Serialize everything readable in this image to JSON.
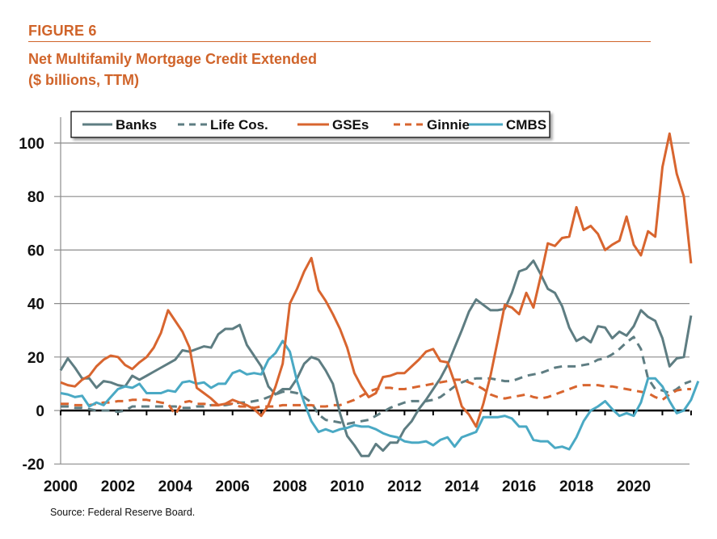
{
  "figure": {
    "label": "FIGURE 6",
    "title_line1": "Net Multifamily Mortgage Credit Extended",
    "title_line2": "($ billions, TTM)",
    "source": "Source: Federal Reserve Board."
  },
  "colors": {
    "accent": "#d0642a",
    "banks": "#5e7d82",
    "life_cos": "#5e7d82",
    "gses": "#d8652f",
    "ginnie": "#d8652f",
    "cmbs": "#4aa9c4",
    "grid": "#8c8c8c"
  },
  "chart_data": {
    "type": "line",
    "title": "Net Multifamily Mortgage Credit Extended ($ billions, TTM)",
    "xlabel": "",
    "ylabel": "",
    "xlim": [
      2000,
      2022
    ],
    "ylim": [
      -20,
      110
    ],
    "x_ticks": [
      "2000",
      "2002",
      "2004",
      "2006",
      "2008",
      "2010",
      "2012",
      "2014",
      "2016",
      "2018",
      "2020"
    ],
    "y_ticks": [
      "-20",
      "0",
      "20",
      "40",
      "60",
      "80",
      "100"
    ],
    "grid": "horizontal",
    "legend": "top",
    "x_start": 2000.0,
    "x_step": 0.25,
    "series": [
      {
        "name": "Banks",
        "style": "solid",
        "values": [
          15,
          19.5,
          16,
          12,
          12,
          8.5,
          11,
          10.5,
          9.5,
          9,
          13,
          11.5,
          13,
          14.5,
          16,
          17.5,
          19,
          22.5,
          22,
          23,
          24,
          23.5,
          28.5,
          30.5,
          30.5,
          32,
          24.5,
          20.5,
          16.5,
          9,
          6,
          8,
          8,
          12,
          17.5,
          20,
          19,
          15,
          10,
          -1,
          -9.5,
          -13,
          -17,
          -17,
          -12.5,
          -15,
          -12,
          -12,
          -7,
          -4,
          0.5,
          4,
          8,
          12,
          17,
          23.5,
          30,
          37,
          41.5,
          39.5,
          37.5,
          37.5,
          38,
          44,
          52,
          53,
          56,
          51,
          45.5,
          44,
          39,
          31,
          26,
          27.5,
          25.5,
          31.5,
          31,
          27,
          29.5,
          28,
          31.5,
          37.5,
          35,
          33.5,
          27,
          16.5,
          19.5,
          20,
          35.5
        ]
      },
      {
        "name": "Life Cos.",
        "style": "dashed",
        "values": [
          1.5,
          1.5,
          1,
          1,
          0.5,
          0,
          0,
          0,
          -0.5,
          0,
          1.5,
          1.5,
          1.5,
          1.5,
          1.5,
          1.5,
          1.5,
          1,
          1,
          1.5,
          1.5,
          2,
          2,
          2,
          2.5,
          3,
          3,
          3.5,
          4,
          5,
          6,
          7,
          7,
          6.5,
          5,
          3,
          -1.5,
          -3.5,
          -4,
          -4.5,
          -5,
          -4.5,
          -4,
          -3.5,
          -2,
          -0.5,
          1,
          2,
          3,
          3.5,
          3.5,
          3.5,
          4,
          5,
          7,
          9,
          10.5,
          11.5,
          12,
          12,
          12,
          11.5,
          11,
          11,
          12,
          13,
          13.5,
          14,
          15,
          16,
          16.5,
          16.5,
          16.5,
          17,
          17.5,
          19,
          19.5,
          21,
          23,
          25.5,
          27.5,
          23,
          12,
          8,
          7.5,
          6.5,
          8,
          10,
          11
        ]
      },
      {
        "name": "GSEs",
        "style": "solid",
        "values": [
          10.5,
          9.5,
          9,
          11.5,
          13,
          16.5,
          19,
          20.5,
          20,
          17,
          15.5,
          18,
          20,
          23.5,
          29,
          37.5,
          33.5,
          29.5,
          23.5,
          8.5,
          6.5,
          4.5,
          2,
          2.5,
          4,
          3,
          2,
          0.5,
          -2,
          2,
          9,
          17.5,
          40,
          45.5,
          52,
          57,
          45,
          41,
          36,
          30.5,
          23.5,
          14,
          9,
          5,
          6.5,
          12.5,
          13,
          14,
          14,
          16.5,
          19,
          22,
          23,
          18.5,
          18,
          10.5,
          1.5,
          -1.5,
          -6,
          2.5,
          13,
          26,
          39.5,
          38.5,
          36,
          44,
          38.5,
          50,
          62.5,
          61.5,
          64.5,
          65,
          76,
          67.5,
          69,
          66,
          60,
          62,
          63.5,
          72.5,
          62,
          58,
          67,
          65,
          91,
          103.5,
          88.5,
          80,
          55
        ]
      },
      {
        "name": "Ginnie",
        "style": "dashed",
        "values": [
          2.5,
          2.5,
          2,
          2,
          2,
          2.5,
          3,
          3,
          3.5,
          3.5,
          4,
          4,
          4,
          3.5,
          3,
          2.5,
          -1.5,
          3,
          3.5,
          2.5,
          2.5,
          2,
          2,
          2.5,
          2.5,
          1.5,
          1.5,
          1,
          1.5,
          1.5,
          1.5,
          2,
          2,
          2,
          2,
          2,
          1.5,
          1.5,
          2,
          2,
          3,
          4,
          5.5,
          7,
          8,
          8.5,
          8.5,
          8,
          8,
          8.5,
          9,
          9.5,
          10,
          10.5,
          11,
          11.5,
          11.5,
          10.5,
          9.5,
          8,
          6,
          5,
          4.5,
          5,
          5.5,
          6,
          5,
          4.5,
          5,
          6,
          7,
          8,
          9,
          9.5,
          9.5,
          9.5,
          9,
          9,
          8.5,
          8,
          7.5,
          7,
          6.5,
          5,
          4,
          6,
          7.5,
          8,
          8
        ]
      },
      {
        "name": "CMBS",
        "style": "solid",
        "values": [
          6.5,
          6,
          5,
          5.5,
          1.5,
          3,
          2,
          5,
          8,
          9,
          8.5,
          10,
          6.5,
          6.5,
          6.5,
          7.5,
          7,
          10.5,
          11,
          10,
          10.5,
          8.5,
          10,
          10,
          14,
          15,
          13.5,
          14,
          13.5,
          19,
          21.5,
          26,
          22,
          11,
          3,
          -4,
          -8,
          -7,
          -8,
          -7,
          -6.5,
          -5.5,
          -6,
          -6,
          -7,
          -8.5,
          -9.5,
          -10,
          -11.5,
          -12,
          -12,
          -11.5,
          -13,
          -11,
          -10,
          -13.5,
          -10,
          -9,
          -8,
          -2.5,
          -2.5,
          -2.5,
          -2,
          -3,
          -6,
          -6,
          -11,
          -11.5,
          -11.5,
          -14,
          -13.5,
          -14.5,
          -10,
          -4,
          0,
          1.5,
          3.5,
          0.5,
          -2,
          -1,
          -2,
          3,
          12,
          12,
          9,
          3.5,
          -1,
          0,
          4,
          11
        ]
      }
    ]
  },
  "legend": {
    "items": [
      "Banks",
      "Life Cos.",
      "GSEs",
      "Ginnie",
      "CMBS"
    ]
  }
}
